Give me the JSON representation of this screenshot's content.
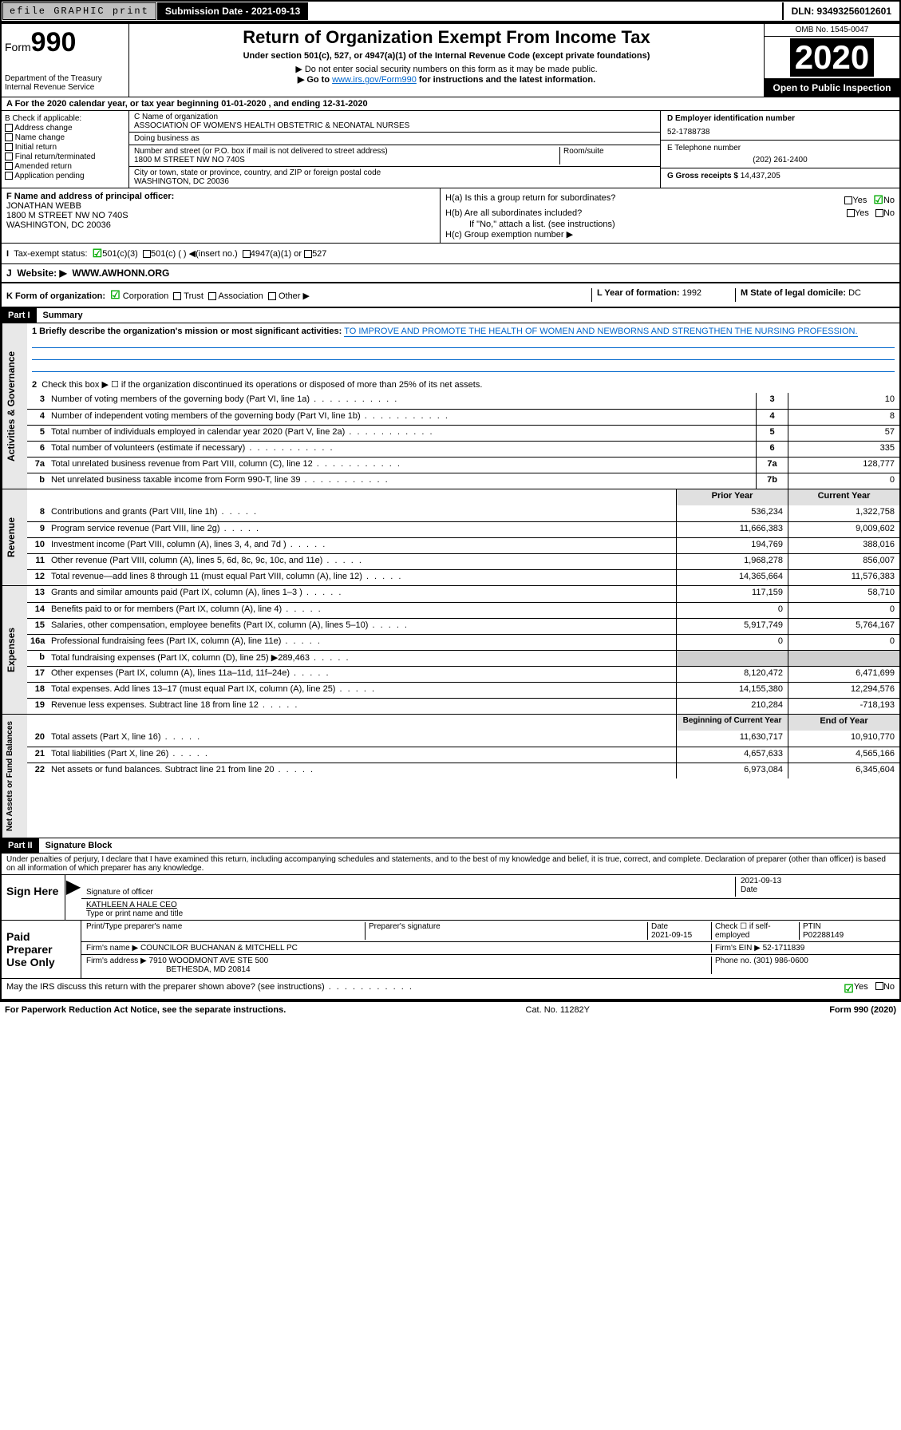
{
  "topbar": {
    "efile": "efile GRAPHIC print",
    "sub_label": "Submission Date - ",
    "sub_date": "2021-09-13",
    "dln": "DLN: 93493256012601"
  },
  "header": {
    "form_prefix": "Form",
    "form_no": "990",
    "dept": "Department of the Treasury\nInternal Revenue Service",
    "title": "Return of Organization Exempt From Income Tax",
    "subtitle": "Under section 501(c), 527, or 4947(a)(1) of the Internal Revenue Code (except private foundations)",
    "note1": "▶ Do not enter social security numbers on this form as it may be made public.",
    "note2_pre": "▶ Go to ",
    "note2_link": "www.irs.gov/Form990",
    "note2_post": " for instructions and the latest information.",
    "omb": "OMB No. 1545-0047",
    "year": "2020",
    "open": "Open to Public Inspection"
  },
  "rowA": "A For the 2020 calendar year, or tax year beginning 01-01-2020    , and ending 12-31-2020",
  "boxB": {
    "label": "B Check if applicable:",
    "opts": [
      "Address change",
      "Name change",
      "Initial return",
      "Final return/terminated",
      "Amended return",
      "Application pending"
    ]
  },
  "boxC": {
    "name_lbl": "C Name of organization",
    "name": "ASSOCIATION OF WOMEN'S HEALTH OBSTETRIC & NEONATAL NURSES",
    "dba_lbl": "Doing business as",
    "addr_lbl": "Number and street (or P.O. box if mail is not delivered to street address)",
    "room_lbl": "Room/suite",
    "addr": "1800 M STREET NW NO 740S",
    "city_lbl": "City or town, state or province, country, and ZIP or foreign postal code",
    "city": "WASHINGTON, DC  20036"
  },
  "boxD": {
    "lbl": "D Employer identification number",
    "val": "52-1788738"
  },
  "boxE": {
    "lbl": "E Telephone number",
    "val": "(202) 261-2400"
  },
  "boxG": {
    "lbl": "G Gross receipts $",
    "val": "14,437,205"
  },
  "boxF": {
    "lbl": "F  Name and address of principal officer:",
    "name": "JONATHAN WEBB",
    "addr": "1800 M STREET NW NO 740S\nWASHINGTON, DC  20036"
  },
  "boxH": {
    "a": "H(a)  Is this a group return for subordinates?",
    "b": "H(b)  Are all subordinates included?",
    "b_note": "If \"No,\" attach a list. (see instructions)",
    "c": "H(c)  Group exemption number ▶"
  },
  "rowI": {
    "lbl": "Tax-exempt status:",
    "o1": "501(c)(3)",
    "o2": "501(c) (  ) ◀(insert no.)",
    "o3": "4947(a)(1) or",
    "o4": "527"
  },
  "rowJ": {
    "lbl": "J",
    "web": "Website: ▶",
    "val": "WWW.AWHONN.ORG"
  },
  "rowK": {
    "lbl": "K Form of organization:",
    "opts": [
      "Corporation",
      "Trust",
      "Association",
      "Other ▶"
    ],
    "l_lbl": "L Year of formation:",
    "l_val": "1992",
    "m_lbl": "M State of legal domicile:",
    "m_val": "DC"
  },
  "part1": {
    "hdr": "Part I",
    "title": "Summary"
  },
  "gov": {
    "side": "Activities & Governance",
    "q1": "1  Briefly describe the organization's mission or most significant activities:",
    "q1v": "TO IMPROVE AND PROMOTE THE HEALTH OF WOMEN AND NEWBORNS AND STRENGTHEN THE NURSING PROFESSION.",
    "q2": "Check this box ▶ ☐  if the organization discontinued its operations or disposed of more than 25% of its net assets.",
    "lines": [
      {
        "n": "3",
        "t": "Number of voting members of the governing body (Part VI, line 1a)",
        "c": "3",
        "v": "10"
      },
      {
        "n": "4",
        "t": "Number of independent voting members of the governing body (Part VI, line 1b)",
        "c": "4",
        "v": "8"
      },
      {
        "n": "5",
        "t": "Total number of individuals employed in calendar year 2020 (Part V, line 2a)",
        "c": "5",
        "v": "57"
      },
      {
        "n": "6",
        "t": "Total number of volunteers (estimate if necessary)",
        "c": "6",
        "v": "335"
      },
      {
        "n": "7a",
        "t": "Total unrelated business revenue from Part VIII, column (C), line 12",
        "c": "7a",
        "v": "128,777"
      },
      {
        "n": "b",
        "t": "Net unrelated business taxable income from Form 990-T, line 39",
        "c": "7b",
        "v": "0"
      }
    ]
  },
  "rev": {
    "side": "Revenue",
    "h1": "Prior Year",
    "h2": "Current Year",
    "lines": [
      {
        "n": "8",
        "t": "Contributions and grants (Part VIII, line 1h)",
        "p": "536,234",
        "c": "1,322,758"
      },
      {
        "n": "9",
        "t": "Program service revenue (Part VIII, line 2g)",
        "p": "11,666,383",
        "c": "9,009,602"
      },
      {
        "n": "10",
        "t": "Investment income (Part VIII, column (A), lines 3, 4, and 7d )",
        "p": "194,769",
        "c": "388,016"
      },
      {
        "n": "11",
        "t": "Other revenue (Part VIII, column (A), lines 5, 6d, 8c, 9c, 10c, and 11e)",
        "p": "1,968,278",
        "c": "856,007"
      },
      {
        "n": "12",
        "t": "Total revenue—add lines 8 through 11 (must equal Part VIII, column (A), line 12)",
        "p": "14,365,664",
        "c": "11,576,383"
      }
    ]
  },
  "exp": {
    "side": "Expenses",
    "lines": [
      {
        "n": "13",
        "t": "Grants and similar amounts paid (Part IX, column (A), lines 1–3 )",
        "p": "117,159",
        "c": "58,710"
      },
      {
        "n": "14",
        "t": "Benefits paid to or for members (Part IX, column (A), line 4)",
        "p": "0",
        "c": "0"
      },
      {
        "n": "15",
        "t": "Salaries, other compensation, employee benefits (Part IX, column (A), lines 5–10)",
        "p": "5,917,749",
        "c": "5,764,167"
      },
      {
        "n": "16a",
        "t": "Professional fundraising fees (Part IX, column (A), line 11e)",
        "p": "0",
        "c": "0"
      },
      {
        "n": "b",
        "t": "Total fundraising expenses (Part IX, column (D), line 25) ▶289,463",
        "p": "",
        "c": "",
        "gray": true
      },
      {
        "n": "17",
        "t": "Other expenses (Part IX, column (A), lines 11a–11d, 11f–24e)",
        "p": "8,120,472",
        "c": "6,471,699"
      },
      {
        "n": "18",
        "t": "Total expenses. Add lines 13–17 (must equal Part IX, column (A), line 25)",
        "p": "14,155,380",
        "c": "12,294,576"
      },
      {
        "n": "19",
        "t": "Revenue less expenses. Subtract line 18 from line 12",
        "p": "210,284",
        "c": "-718,193"
      }
    ]
  },
  "net": {
    "side": "Net Assets or Fund Balances",
    "h1": "Beginning of Current Year",
    "h2": "End of Year",
    "lines": [
      {
        "n": "20",
        "t": "Total assets (Part X, line 16)",
        "p": "11,630,717",
        "c": "10,910,770"
      },
      {
        "n": "21",
        "t": "Total liabilities (Part X, line 26)",
        "p": "4,657,633",
        "c": "4,565,166"
      },
      {
        "n": "22",
        "t": "Net assets or fund balances. Subtract line 21 from line 20",
        "p": "6,973,084",
        "c": "6,345,604"
      }
    ]
  },
  "part2": {
    "hdr": "Part II",
    "title": "Signature Block"
  },
  "sig": {
    "decl": "Under penalties of perjury, I declare that I have examined this return, including accompanying schedules and statements, and to the best of my knowledge and belief, it is true, correct, and complete. Declaration of preparer (other than officer) is based on all information of which preparer has any knowledge.",
    "sign_here": "Sign Here",
    "sig_officer": "Signature of officer",
    "date": "2021-09-13",
    "date_lbl": "Date",
    "name": "KATHLEEN A HALE  CEO",
    "name_lbl": "Type or print name and title",
    "paid": "Paid Preparer Use Only",
    "p_name_lbl": "Print/Type preparer's name",
    "p_sig_lbl": "Preparer's signature",
    "p_date_lbl": "Date",
    "p_date": "2021-09-15",
    "p_chk": "Check ☐ if self-employed",
    "ptin_lbl": "PTIN",
    "ptin": "P02288149",
    "firm_name_lbl": "Firm's name    ▶",
    "firm_name": "COUNCILOR BUCHANAN & MITCHELL PC",
    "firm_ein_lbl": "Firm's EIN ▶",
    "firm_ein": "52-1711839",
    "firm_addr_lbl": "Firm's address ▶",
    "firm_addr": "7910 WOODMONT AVE STE 500",
    "firm_city": "BETHESDA, MD  20814",
    "phone_lbl": "Phone no.",
    "phone": "(301) 986-0600",
    "discuss": "May the IRS discuss this return with the preparer shown above? (see instructions)"
  },
  "footer": {
    "l": "For Paperwork Reduction Act Notice, see the separate instructions.",
    "m": "Cat. No. 11282Y",
    "r": "Form 990 (2020)"
  }
}
